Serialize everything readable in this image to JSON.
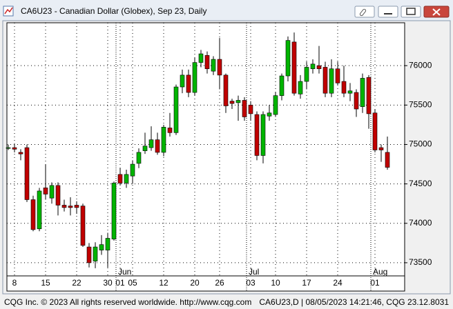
{
  "chart_data": {
    "type": "candlestick",
    "title": "CA6U23 - Canadian Dollar (Globex), Sep 23, Daily",
    "categories": [
      null,
      "8",
      null,
      null,
      null,
      null,
      "15",
      null,
      null,
      null,
      null,
      "22",
      null,
      null,
      null,
      null,
      "30",
      null,
      "01",
      null,
      "05",
      null,
      null,
      null,
      null,
      "12",
      null,
      null,
      null,
      null,
      "20",
      null,
      null,
      null,
      "26",
      null,
      null,
      null,
      null,
      "03",
      null,
      null,
      null,
      "10",
      null,
      null,
      null,
      null,
      "17",
      null,
      null,
      null,
      null,
      "24",
      null,
      null,
      null,
      null,
      null,
      "01",
      null,
      null
    ],
    "months": [
      "Jun",
      "Jul",
      "Aug"
    ],
    "open": [
      74950,
      74960,
      74900,
      74960,
      74300,
      73930,
      74450,
      74320,
      74480,
      74230,
      74220,
      74230,
      74220,
      73700,
      73520,
      73660,
      73660,
      73800,
      74620,
      74510,
      74600,
      74760,
      74920,
      74960,
      75060,
      74900,
      75210,
      75150,
      75730,
      75880,
      75660,
      76040,
      76130,
      75930,
      76080,
      75880,
      75550,
      75530,
      75560,
      75500,
      75380,
      74860,
      75360,
      75380,
      75620,
      75870,
      76300,
      75640,
      75800,
      75960,
      76000,
      75980,
      75650,
      75960,
      75800,
      75650,
      75660,
      75480,
      75850,
      75400,
      74960,
      74900
    ],
    "high": [
      75000,
      75000,
      74940,
      75000,
      74350,
      74450,
      74750,
      74520,
      74520,
      74300,
      74330,
      74280,
      74250,
      73750,
      73760,
      73850,
      73880,
      74530,
      74700,
      74680,
      74800,
      74950,
      75150,
      75230,
      75150,
      75250,
      75400,
      75760,
      75950,
      75950,
      76100,
      76200,
      76180,
      76120,
      76350,
      75900,
      75580,
      75620,
      75600,
      75550,
      75420,
      75420,
      75500,
      75660,
      75900,
      76370,
      76420,
      75880,
      76050,
      76080,
      76250,
      76050,
      76080,
      76050,
      76000,
      75780,
      75700,
      75900,
      75880,
      75450,
      75000,
      75100
    ],
    "low": [
      74930,
      74900,
      74800,
      74270,
      73900,
      73900,
      74300,
      74250,
      74100,
      74150,
      74100,
      74120,
      73700,
      73440,
      73430,
      73600,
      73440,
      73780,
      74480,
      74450,
      74500,
      74700,
      74880,
      74920,
      74870,
      74850,
      75100,
      75120,
      75650,
      75600,
      75620,
      75980,
      75900,
      75880,
      75700,
      75400,
      75450,
      75300,
      75300,
      75300,
      74800,
      74760,
      75300,
      75350,
      75560,
      75800,
      75620,
      75580,
      75700,
      75900,
      75900,
      75600,
      75600,
      75750,
      75600,
      75550,
      75350,
      75400,
      75200,
      74900,
      74780,
      74680
    ],
    "close": [
      74960,
      74940,
      74880,
      74300,
      73920,
      74410,
      74370,
      74480,
      74230,
      74200,
      74200,
      74200,
      73720,
      73500,
      73700,
      73730,
      73810,
      74510,
      74510,
      74620,
      74750,
      74900,
      74980,
      75060,
      74900,
      75220,
      75150,
      75730,
      75880,
      75660,
      76040,
      76150,
      75960,
      76080,
      75880,
      75490,
      75520,
      75560,
      75350,
      75390,
      74860,
      75380,
      75400,
      75620,
      75870,
      76320,
      75650,
      75800,
      75980,
      76020,
      75960,
      75650,
      75960,
      75780,
      75650,
      75680,
      75450,
      75840,
      75390,
      74930,
      74930,
      74710
    ],
    "up_color": "#00b400",
    "down_color": "#c00000",
    "ylim": [
      73333,
      76544
    ],
    "yticks": [
      73500,
      74000,
      74500,
      75000,
      75500,
      76000
    ],
    "grid": true
  },
  "footer": {
    "left": "CQG Inc. © 2023 All rights reserved worldwide. http://www.cqg.com",
    "right": "CA6U23,D | 08/05/2023 14:21:46, CQG 23.12.8031"
  }
}
